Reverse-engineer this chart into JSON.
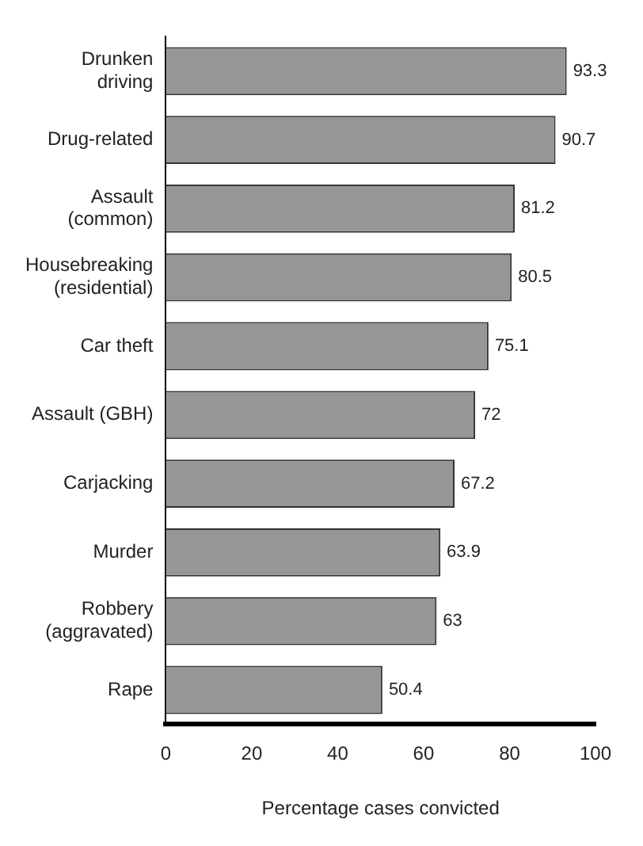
{
  "chart_data": {
    "type": "bar",
    "orientation": "horizontal",
    "xlabel": "Percentage cases convicted",
    "categories": [
      "Drunken driving",
      "Drug-related",
      "Assault (common)",
      "Housebreaking (residential)",
      "Car theft",
      "Assault (GBH)",
      "Carjacking",
      "Murder",
      "Robbery (aggravated)",
      "Rape"
    ],
    "values": [
      93.3,
      90.7,
      81.2,
      80.5,
      75.1,
      72,
      67.2,
      63.9,
      63,
      50.4
    ],
    "color": "#969696",
    "xlim": [
      0,
      100
    ],
    "xticks": [
      0,
      20,
      40,
      60,
      80,
      100
    ],
    "data_labels": true,
    "grid": false,
    "legend": false
  }
}
